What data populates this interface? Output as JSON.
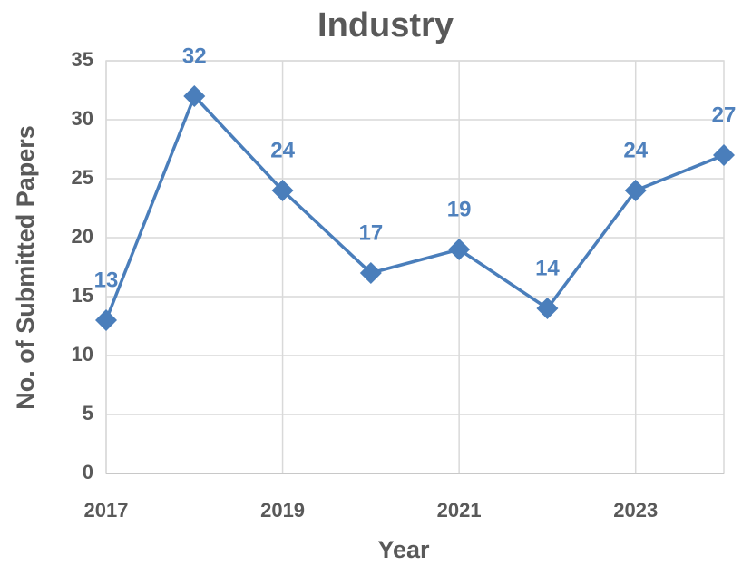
{
  "chart_data": {
    "type": "line",
    "title": "Industry",
    "x_label": "Year",
    "y_label": "No. of Submitted Papers",
    "x": [
      2017,
      2018,
      2019,
      2020,
      2021,
      2022,
      2023,
      2024
    ],
    "series": [
      {
        "name": "Industry",
        "color": "#4a7ebb",
        "values": [
          13,
          32,
          24,
          17,
          19,
          14,
          24,
          27
        ]
      }
    ],
    "xlim": [
      2017,
      2024
    ],
    "xticks": [
      2017,
      2019,
      2021,
      2023
    ],
    "ylim": [
      0,
      35
    ],
    "yticks": [
      0,
      5,
      10,
      15,
      20,
      25,
      30,
      35
    ],
    "grid": true
  }
}
